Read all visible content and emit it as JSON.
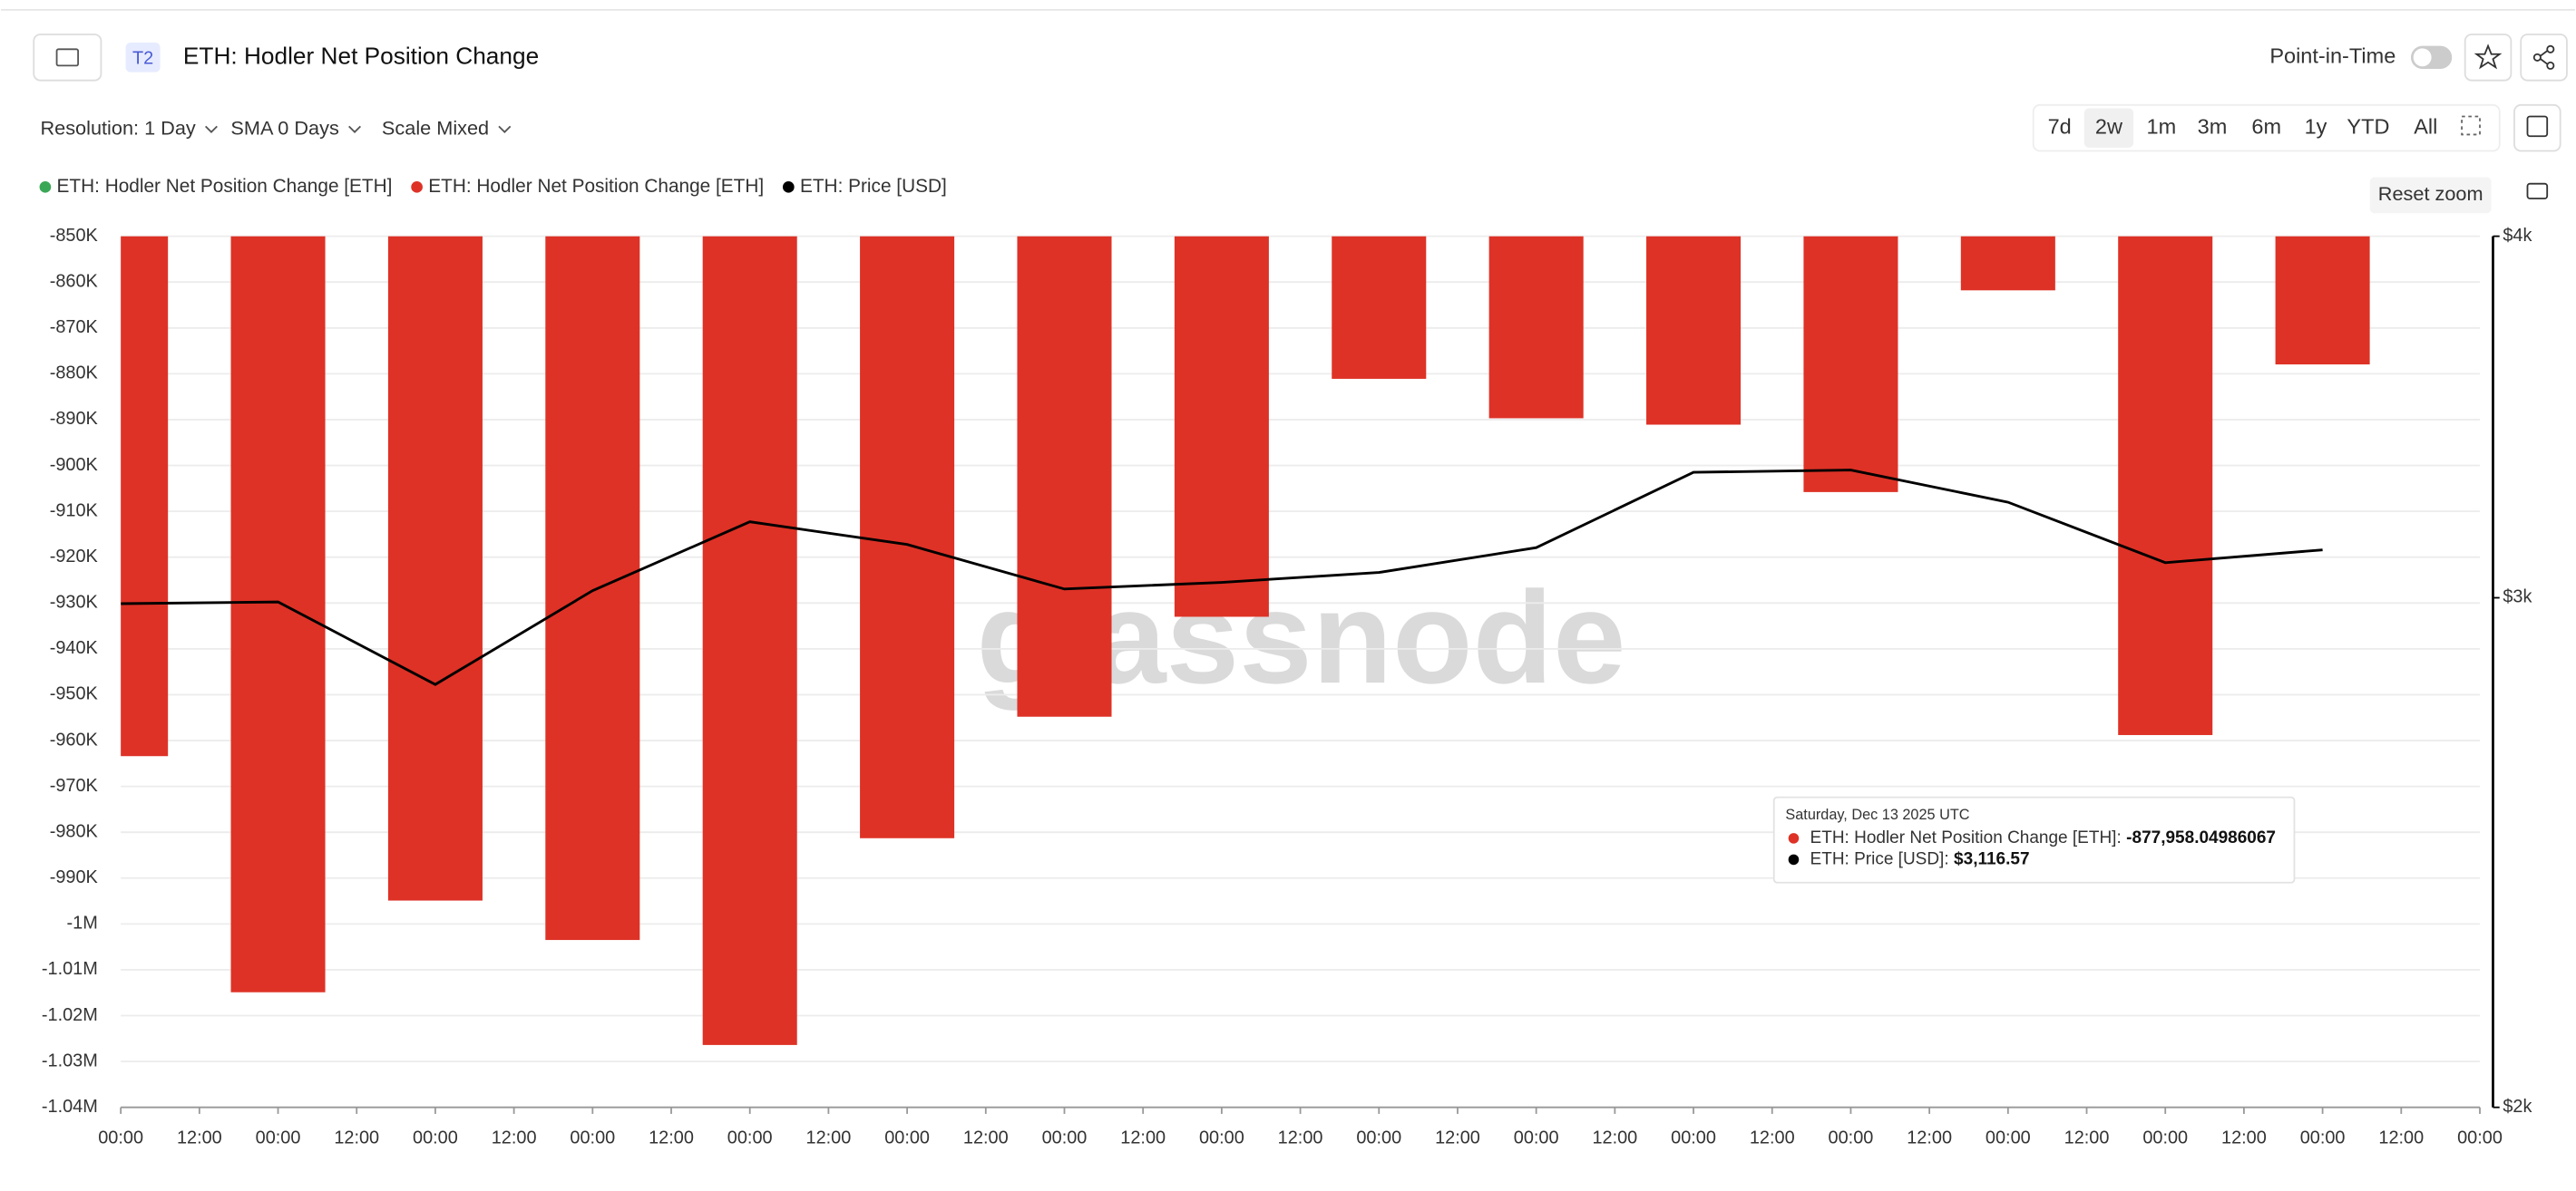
{
  "ui": {
    "badge": "T2",
    "title": "ETH: Hodler Net Position Change",
    "point_in_time": "Point-in-Time",
    "controls": [
      "Resolution: 1 Day",
      "SMA 0 Days",
      "Scale Mixed"
    ],
    "ranges": [
      "7d",
      "2w",
      "1m",
      "3m",
      "6m",
      "1y",
      "YTD",
      "All"
    ],
    "active_range": "2w",
    "reset_zoom": "Reset zoom",
    "watermark": "glassnode"
  },
  "chart_data": {
    "type": "bar",
    "legend": [
      {
        "name": "ETH: Hodler Net Position Change [ETH]",
        "color": "#3aa757"
      },
      {
        "name": "ETH: Hodler Net Position Change [ETH]",
        "color": "#de3226"
      },
      {
        "name": "ETH: Price [USD]",
        "color": "#000000"
      }
    ],
    "x": [
      0,
      24,
      48,
      72,
      96,
      120,
      144,
      168,
      192,
      216,
      240,
      264,
      288,
      312,
      336
    ],
    "series": [
      {
        "type": "bar",
        "color": "#de3226",
        "values": [
          -963400,
          -1014900,
          -994900,
          -1003500,
          -1026400,
          -981300,
          -954800,
          -933000,
          -881100,
          -889700,
          -891100,
          -905800,
          -861800,
          -958800,
          -877958.04986067
        ]
      },
      {
        "type": "line",
        "axis": "y2",
        "color": "#000000",
        "values": [
          2986,
          2990,
          2800,
          3017,
          3187,
          3130,
          3021,
          3037,
          3061,
          3122,
          3315,
          3321,
          3237,
          3085,
          3116.57
        ]
      }
    ],
    "xlim": [
      0,
      360
    ],
    "xticks": [
      {
        "value": 0,
        "label": "00:00"
      },
      {
        "value": 12,
        "label": "12:00"
      },
      {
        "value": 24,
        "label": "00:00"
      },
      {
        "value": 36,
        "label": "12:00"
      },
      {
        "value": 48,
        "label": "00:00"
      },
      {
        "value": 60,
        "label": "12:00"
      },
      {
        "value": 72,
        "label": "00:00"
      },
      {
        "value": 84,
        "label": "12:00"
      },
      {
        "value": 96,
        "label": "00:00"
      },
      {
        "value": 108,
        "label": "12:00"
      },
      {
        "value": 120,
        "label": "00:00"
      },
      {
        "value": 132,
        "label": "12:00"
      },
      {
        "value": 144,
        "label": "00:00"
      },
      {
        "value": 156,
        "label": "12:00"
      },
      {
        "value": 168,
        "label": "00:00"
      },
      {
        "value": 180,
        "label": "12:00"
      },
      {
        "value": 192,
        "label": "00:00"
      },
      {
        "value": 204,
        "label": "12:00"
      },
      {
        "value": 216,
        "label": "00:00"
      },
      {
        "value": 228,
        "label": "12:00"
      },
      {
        "value": 240,
        "label": "00:00"
      },
      {
        "value": 252,
        "label": "12:00"
      },
      {
        "value": 264,
        "label": "00:00"
      },
      {
        "value": 276,
        "label": "12:00"
      },
      {
        "value": 288,
        "label": "00:00"
      },
      {
        "value": 300,
        "label": "12:00"
      },
      {
        "value": 312,
        "label": "00:00"
      },
      {
        "value": 324,
        "label": "12:00"
      },
      {
        "value": 336,
        "label": "00:00"
      },
      {
        "value": 348,
        "label": "12:00"
      },
      {
        "value": 360,
        "label": "00:00"
      }
    ],
    "ylim": [
      -1040000,
      -850000
    ],
    "yticks": [
      {
        "value": -850000,
        "label": "-850K"
      },
      {
        "value": -860000,
        "label": "-860K"
      },
      {
        "value": -870000,
        "label": "-870K"
      },
      {
        "value": -880000,
        "label": "-880K"
      },
      {
        "value": -890000,
        "label": "-890K"
      },
      {
        "value": -900000,
        "label": "-900K"
      },
      {
        "value": -910000,
        "label": "-910K"
      },
      {
        "value": -920000,
        "label": "-920K"
      },
      {
        "value": -930000,
        "label": "-930K"
      },
      {
        "value": -940000,
        "label": "-940K"
      },
      {
        "value": -950000,
        "label": "-950K"
      },
      {
        "value": -960000,
        "label": "-960K"
      },
      {
        "value": -970000,
        "label": "-970K"
      },
      {
        "value": -980000,
        "label": "-980K"
      },
      {
        "value": -990000,
        "label": "-990K"
      },
      {
        "value": -1000000,
        "label": "-1M"
      },
      {
        "value": -1010000,
        "label": "-1.01M"
      },
      {
        "value": -1020000,
        "label": "-1.02M"
      },
      {
        "value": -1030000,
        "label": "-1.03M"
      },
      {
        "value": -1040000,
        "label": "-1.04M"
      }
    ],
    "y2lim": [
      2000,
      4000
    ],
    "y2_log": true,
    "y2ticks": [
      {
        "value": 2000,
        "label": "$2k"
      },
      {
        "value": 3000,
        "label": "$3k"
      },
      {
        "value": 4000,
        "label": "$4k"
      }
    ],
    "grid": true,
    "tooltip": {
      "title": "Saturday, Dec 13 2025 UTC",
      "items": [
        {
          "color": "#de3226",
          "label": "ETH: Hodler Net Position Change [ETH]:",
          "value_label": "-877,958.04986067"
        },
        {
          "color": "#000000",
          "label": "ETH: Price [USD]:",
          "value_label": "$3,116.57"
        }
      ]
    }
  }
}
